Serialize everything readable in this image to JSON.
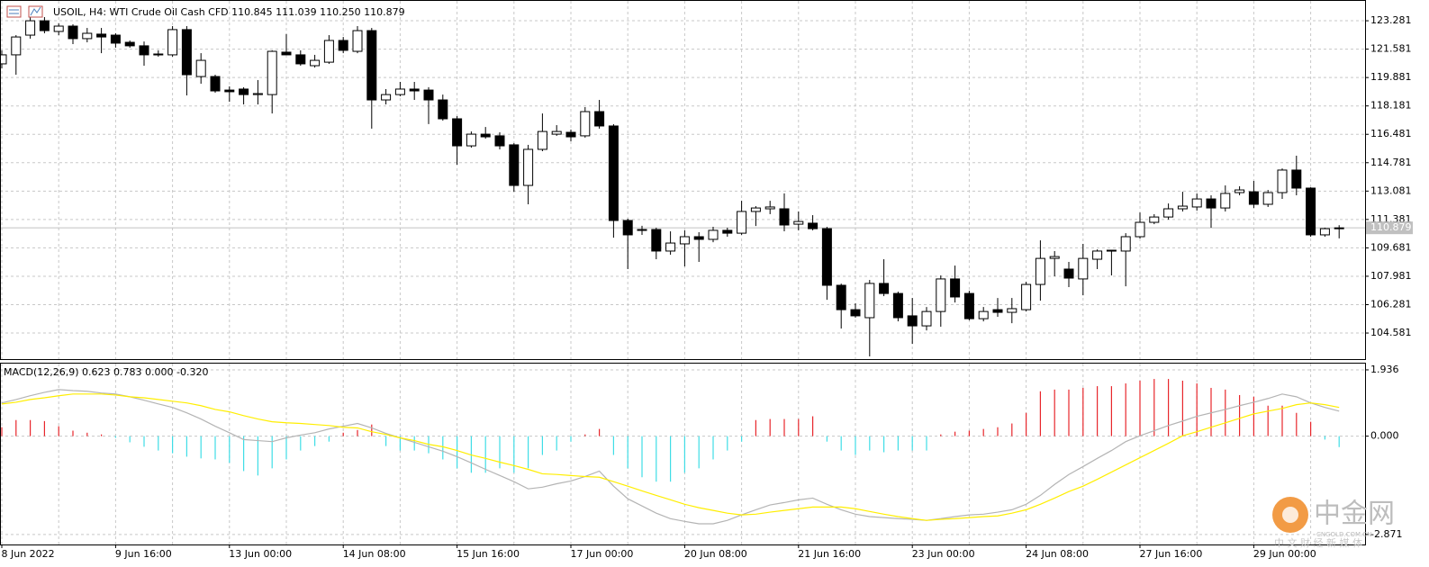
{
  "chart_data": [
    {
      "type": "candlestick",
      "title": "USOIL, H4:  WTI Crude Oil Cash CFD  110.845 111.039 110.250 110.879",
      "categories": [
        "8 Jun 2022",
        null,
        null,
        null,
        null,
        null,
        null,
        null,
        "9 Jun 16:00",
        null,
        null,
        null,
        null,
        null,
        null,
        null,
        "13 Jun 00:00",
        null,
        null,
        null,
        null,
        null,
        null,
        null,
        "14 Jun 08:00",
        null,
        null,
        null,
        null,
        null,
        null,
        null,
        "15 Jun 16:00",
        null,
        null,
        null,
        null,
        null,
        null,
        null,
        "17 Jun 00:00",
        null,
        null,
        null,
        null,
        null,
        null,
        null,
        "20 Jun 08:00",
        null,
        null,
        null,
        null,
        null,
        null,
        null,
        "21 Jun 16:00",
        null,
        null,
        null,
        null,
        null,
        null,
        null,
        "23 Jun 00:00",
        null,
        null,
        null,
        null,
        null,
        null,
        null,
        "24 Jun 08:00",
        null,
        null,
        null,
        null,
        null,
        null,
        null,
        "27 Jun 16:00",
        null,
        null,
        null,
        null,
        null,
        null,
        null,
        "29 Jun 00:00",
        null,
        null,
        null,
        null,
        null,
        null
      ],
      "open": [
        120.7,
        121.24,
        122.42,
        123.28,
        122.64,
        122.96,
        122.21,
        122.48,
        122.42,
        121.99,
        121.78,
        121.29,
        121.24,
        122.75,
        119.94,
        119.94,
        119.13,
        119.19,
        118.86,
        118.86,
        121.4,
        121.24,
        120.59,
        120.8,
        122.1,
        121.45,
        122.69,
        118.54,
        118.86,
        119.19,
        119.13,
        118.54,
        117.41,
        115.79,
        116.49,
        116.39,
        115.85,
        113.42,
        115.58,
        116.49,
        116.6,
        116.39,
        117.84,
        116.98,
        111.32,
        110.78,
        110.78,
        109.49,
        109.92,
        110.35,
        110.19,
        110.73,
        110.56,
        111.86,
        112.02,
        112.02,
        111.1,
        111.16,
        110.83,
        107.44,
        105.98,
        105.5,
        107.55,
        106.95,
        105.61,
        105.01,
        105.87,
        107.82,
        106.95,
        105.44,
        105.98,
        105.82,
        105.98,
        107.49,
        109.05,
        108.41,
        107.82,
        109.0,
        109.49,
        109.49,
        110.35,
        111.21,
        111.53,
        112.02,
        112.13,
        112.61,
        112.07,
        112.99,
        113.04,
        112.29,
        112.99,
        114.34,
        113.26,
        110.46,
        110.845
      ],
      "high": [
        121.51,
        122.42,
        123.5,
        123.5,
        123.12,
        123.07,
        122.85,
        122.85,
        122.53,
        122.1,
        122.04,
        121.51,
        122.96,
        122.96,
        121.34,
        120.05,
        119.35,
        119.3,
        119.73,
        121.51,
        122.48,
        121.51,
        121.24,
        122.42,
        122.31,
        122.96,
        122.85,
        119.19,
        119.62,
        119.62,
        119.3,
        118.86,
        117.57,
        116.65,
        116.92,
        116.6,
        115.95,
        115.85,
        117.73,
        117.03,
        116.76,
        118.11,
        118.54,
        117.09,
        111.43,
        111.0,
        110.89,
        110.67,
        110.73,
        110.62,
        110.94,
        110.89,
        112.5,
        112.18,
        112.5,
        112.94,
        111.86,
        111.64,
        110.94,
        107.54,
        106.36,
        107.76,
        109.0,
        107.06,
        106.68,
        106.14,
        108.03,
        108.62,
        107.11,
        106.14,
        106.68,
        106.68,
        107.65,
        110.13,
        109.49,
        108.84,
        109.92,
        109.59,
        109.54,
        110.56,
        111.8,
        111.7,
        112.34,
        113.04,
        112.94,
        112.83,
        113.42,
        113.37,
        113.69,
        113.15,
        114.44,
        115.2,
        113.31,
        110.89,
        111.039
      ],
      "low": [
        120.43,
        120.05,
        122.21,
        122.53,
        122.42,
        121.88,
        121.99,
        121.34,
        121.67,
        121.67,
        120.59,
        121.13,
        121.13,
        118.81,
        119.51,
        118.97,
        118.43,
        118.27,
        118.27,
        117.73,
        121.24,
        120.59,
        120.48,
        120.7,
        121.34,
        121.34,
        116.82,
        118.27,
        118.76,
        118.54,
        117.09,
        117.3,
        114.66,
        115.68,
        116.22,
        115.58,
        113.04,
        112.29,
        115.47,
        116.39,
        116.06,
        116.28,
        116.82,
        110.29,
        108.41,
        110.46,
        109.0,
        109.27,
        108.57,
        108.84,
        110.02,
        110.35,
        110.46,
        110.99,
        111.7,
        110.67,
        110.73,
        110.73,
        106.57,
        104.85,
        105.5,
        103.18,
        106.79,
        105.28,
        103.93,
        104.74,
        104.96,
        106.41,
        105.34,
        105.28,
        105.55,
        105.17,
        105.87,
        106.52,
        107.98,
        107.33,
        106.84,
        108.41,
        108.03,
        107.38,
        110.24,
        111.1,
        111.37,
        111.86,
        111.91,
        110.89,
        111.86,
        112.83,
        112.07,
        112.13,
        112.61,
        112.83,
        110.35,
        110.35,
        110.25
      ],
      "close": [
        121.24,
        122.31,
        123.28,
        122.69,
        122.96,
        122.21,
        122.53,
        122.31,
        121.94,
        121.78,
        121.24,
        121.24,
        122.75,
        120.05,
        120.91,
        119.08,
        119.03,
        118.86,
        118.92,
        121.45,
        121.24,
        120.7,
        120.91,
        122.1,
        121.51,
        122.69,
        118.54,
        118.86,
        119.19,
        119.08,
        118.54,
        117.41,
        115.79,
        116.49,
        116.33,
        115.79,
        113.42,
        115.58,
        116.65,
        116.65,
        116.33,
        117.84,
        116.98,
        111.32,
        110.46,
        110.73,
        109.49,
        109.97,
        110.35,
        110.19,
        110.73,
        110.56,
        111.86,
        112.07,
        112.13,
        111.05,
        111.26,
        110.83,
        107.44,
        105.98,
        105.61,
        107.55,
        106.95,
        105.5,
        105.01,
        105.87,
        107.82,
        106.74,
        105.44,
        105.87,
        105.82,
        106.04,
        107.49,
        109.05,
        109.16,
        107.87,
        109.05,
        109.49,
        109.54,
        110.35,
        111.21,
        111.53,
        112.02,
        112.18,
        112.61,
        112.07,
        112.94,
        113.15,
        112.29,
        112.99,
        114.34,
        113.26,
        110.46,
        110.83,
        110.879
      ],
      "up_color": "#ffffff",
      "down_color": "#000000",
      "ylim": [
        103.02,
        124.47
      ],
      "yticks": [
        104.581,
        106.281,
        107.981,
        109.681,
        111.381,
        113.081,
        114.781,
        116.481,
        118.181,
        119.881,
        121.581,
        123.281
      ],
      "last_price": 110.879,
      "grid": true
    },
    {
      "type": "macd",
      "title": "MACD(12,26,9) 0.623 0.783 0.000 -0.320",
      "histogram": {
        "up_color": "#e8262b",
        "down_color": "#3fdde6",
        "values": [
          0.26,
          0.47,
          0.47,
          0.44,
          0.29,
          0.16,
          0.1,
          0.05,
          -0.05,
          -0.18,
          -0.31,
          -0.42,
          -0.5,
          -0.6,
          -0.65,
          -0.68,
          -0.78,
          -1.02,
          -1.15,
          -0.94,
          -0.68,
          -0.42,
          -0.29,
          -0.16,
          0.1,
          0.18,
          0.34,
          -0.29,
          -0.42,
          -0.42,
          -0.5,
          -0.68,
          -0.94,
          -1.07,
          -1.07,
          -0.94,
          -1.07,
          -0.94,
          -0.55,
          -0.42,
          -0.16,
          0.05,
          0.21,
          -0.55,
          -0.94,
          -1.2,
          -1.33,
          -1.33,
          -1.07,
          -0.94,
          -0.68,
          -0.42,
          -0.16,
          0.47,
          0.5,
          0.5,
          0.5,
          0.58,
          -0.16,
          -0.42,
          -0.55,
          -0.42,
          -0.47,
          -0.42,
          -0.42,
          -0.42,
          0.05,
          0.13,
          0.16,
          0.21,
          0.26,
          0.37,
          0.68,
          1.31,
          1.36,
          1.36,
          1.41,
          1.46,
          1.46,
          1.54,
          1.62,
          1.67,
          1.67,
          1.62,
          1.54,
          1.41,
          1.36,
          1.2,
          1.15,
          0.89,
          0.89,
          0.68,
          0.42,
          -0.1,
          -0.32
        ]
      },
      "series": [
        {
          "color": "#b4b4b4",
          "values": [
            0.97,
            1.07,
            1.18,
            1.28,
            1.36,
            1.33,
            1.31,
            1.26,
            1.23,
            1.15,
            1.05,
            0.94,
            0.84,
            0.68,
            0.5,
            0.29,
            0.1,
            -0.1,
            -0.13,
            -0.16,
            -0.05,
            0.03,
            0.1,
            0.21,
            0.29,
            0.37,
            0.24,
            0.08,
            -0.05,
            -0.18,
            -0.31,
            -0.44,
            -0.6,
            -0.78,
            -0.97,
            -1.15,
            -1.33,
            -1.54,
            -1.49,
            -1.39,
            -1.31,
            -1.18,
            -1.02,
            -1.46,
            -1.83,
            -2.04,
            -2.25,
            -2.41,
            -2.49,
            -2.56,
            -2.56,
            -2.46,
            -2.3,
            -2.15,
            -2.01,
            -1.94,
            -1.86,
            -1.81,
            -1.99,
            -2.15,
            -2.28,
            -2.35,
            -2.38,
            -2.41,
            -2.43,
            -2.46,
            -2.41,
            -2.35,
            -2.3,
            -2.28,
            -2.22,
            -2.15,
            -1.99,
            -1.73,
            -1.41,
            -1.12,
            -0.89,
            -0.65,
            -0.42,
            -0.16,
            0.01,
            0.16,
            0.31,
            0.44,
            0.58,
            0.68,
            0.78,
            0.89,
            0.99,
            1.1,
            1.23,
            1.15,
            0.97,
            0.84,
            0.73
          ]
        },
        {
          "color": "#ffee00",
          "values": [
            0.94,
            0.99,
            1.07,
            1.12,
            1.18,
            1.23,
            1.23,
            1.23,
            1.2,
            1.15,
            1.12,
            1.07,
            1.02,
            0.97,
            0.89,
            0.78,
            0.71,
            0.6,
            0.5,
            0.42,
            0.39,
            0.37,
            0.34,
            0.31,
            0.26,
            0.24,
            0.13,
            0.05,
            -0.05,
            -0.13,
            -0.24,
            -0.31,
            -0.42,
            -0.55,
            -0.65,
            -0.76,
            -0.86,
            -0.97,
            -1.1,
            -1.12,
            -1.15,
            -1.18,
            -1.2,
            -1.33,
            -1.46,
            -1.6,
            -1.73,
            -1.86,
            -1.99,
            -2.09,
            -2.17,
            -2.25,
            -2.3,
            -2.28,
            -2.22,
            -2.17,
            -2.12,
            -2.07,
            -2.07,
            -2.07,
            -2.12,
            -2.2,
            -2.28,
            -2.35,
            -2.41,
            -2.46,
            -2.43,
            -2.41,
            -2.38,
            -2.35,
            -2.33,
            -2.25,
            -2.15,
            -1.99,
            -1.81,
            -1.62,
            -1.46,
            -1.26,
            -1.05,
            -0.84,
            -0.63,
            -0.42,
            -0.21,
            0.01,
            0.13,
            0.26,
            0.39,
            0.52,
            0.65,
            0.73,
            0.81,
            0.92,
            0.97,
            0.92,
            0.84
          ]
        }
      ],
      "ylim": [
        -3.165,
        2.119
      ],
      "yticks": [
        1.936,
        {
          "value": 0,
          "label": "0.000"
        },
        -2.871
      ]
    }
  ],
  "watermark": {
    "name": "中金网",
    "domain": "CNGOLD.COM.CN",
    "slogan": "中 文 财 经 新 媒 体"
  }
}
